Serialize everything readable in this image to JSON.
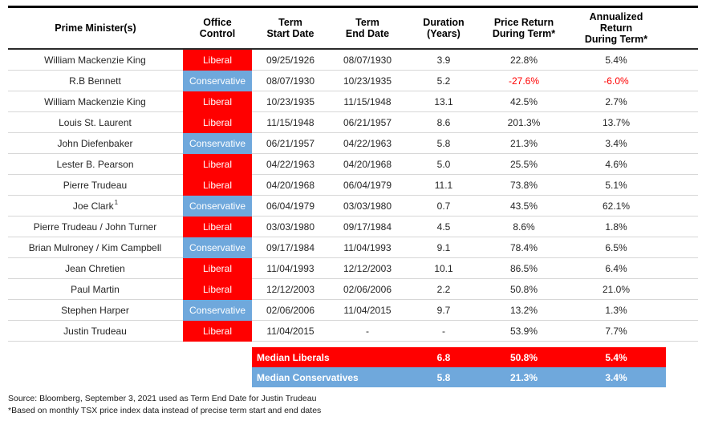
{
  "chart_data": {
    "type": "table",
    "columns": [
      "Prime Minister(s)",
      "Office\nControl",
      "Term\nStart Date",
      "Term\nEnd Date",
      "Duration\n(Years)",
      "Price Return\nDuring Term*",
      "Annualized\nReturn\nDuring Term*"
    ],
    "rows": [
      {
        "pm": "William Mackenzie King",
        "party": "Liberal",
        "start": "09/25/1926",
        "end": "08/07/1930",
        "duration": "3.9",
        "price_return": "22.8%",
        "annualized_return": "5.4%"
      },
      {
        "pm": "R.B Bennett",
        "party": "Conservative",
        "start": "08/07/1930",
        "end": "10/23/1935",
        "duration": "5.2",
        "price_return": "-27.6%",
        "annualized_return": "-6.0%"
      },
      {
        "pm": "William Mackenzie King",
        "party": "Liberal",
        "start": "10/23/1935",
        "end": "11/15/1948",
        "duration": "13.1",
        "price_return": "42.5%",
        "annualized_return": "2.7%"
      },
      {
        "pm": "Louis St. Laurent",
        "party": "Liberal",
        "start": "11/15/1948",
        "end": "06/21/1957",
        "duration": "8.6",
        "price_return": "201.3%",
        "annualized_return": "13.7%"
      },
      {
        "pm": "John Diefenbaker",
        "party": "Conservative",
        "start": "06/21/1957",
        "end": "04/22/1963",
        "duration": "5.8",
        "price_return": "21.3%",
        "annualized_return": "3.4%"
      },
      {
        "pm": "Lester B. Pearson",
        "party": "Liberal",
        "start": "04/22/1963",
        "end": "04/20/1968",
        "duration": "5.0",
        "price_return": "25.5%",
        "annualized_return": "4.6%"
      },
      {
        "pm": "Pierre Trudeau",
        "party": "Liberal",
        "start": "04/20/1968",
        "end": "06/04/1979",
        "duration": "11.1",
        "price_return": "73.8%",
        "annualized_return": "5.1%"
      },
      {
        "pm": "Joe Clark",
        "pm_superscript": "1",
        "party": "Conservative",
        "start": "06/04/1979",
        "end": "03/03/1980",
        "duration": "0.7",
        "price_return": "43.5%",
        "annualized_return": "62.1%"
      },
      {
        "pm": "Pierre Trudeau / John Turner",
        "party": "Liberal",
        "start": "03/03/1980",
        "end": "09/17/1984",
        "duration": "4.5",
        "price_return": "8.6%",
        "annualized_return": "1.8%"
      },
      {
        "pm": "Brian Mulroney / Kim Campbell",
        "party": "Conservative",
        "start": "09/17/1984",
        "end": "11/04/1993",
        "duration": "9.1",
        "price_return": "78.4%",
        "annualized_return": "6.5%"
      },
      {
        "pm": "Jean Chretien",
        "party": "Liberal",
        "start": "11/04/1993",
        "end": "12/12/2003",
        "duration": "10.1",
        "price_return": "86.5%",
        "annualized_return": "6.4%"
      },
      {
        "pm": "Paul Martin",
        "party": "Liberal",
        "start": "12/12/2003",
        "end": "02/06/2006",
        "duration": "2.2",
        "price_return": "50.8%",
        "annualized_return": "21.0%"
      },
      {
        "pm": "Stephen Harper",
        "party": "Conservative",
        "start": "02/06/2006",
        "end": "11/04/2015",
        "duration": "9.7",
        "price_return": "13.2%",
        "annualized_return": "1.3%"
      },
      {
        "pm": "Justin Trudeau",
        "party": "Liberal",
        "start": "11/04/2015",
        "end": "-",
        "duration": "-",
        "price_return": "53.9%",
        "annualized_return": "7.7%"
      }
    ],
    "summary_rows": [
      {
        "label": "Median Liberals",
        "duration": "6.8",
        "price_return": "50.8%",
        "annualized_return": "5.4%",
        "variant": "liberal"
      },
      {
        "label": "Median Conservatives",
        "duration": "5.8",
        "price_return": "21.3%",
        "annualized_return": "3.4%",
        "variant": "conservative"
      }
    ],
    "colors": {
      "liberal": "#FF0000",
      "conservative": "#6FA8DC",
      "negative_text": "#FF0000"
    },
    "footnotes": [
      "Source: Bloomberg, September 3, 2021 used as Term End Date for Justin Trudeau",
      "*Based on monthly TSX price index data instead of precise term start and end dates"
    ]
  }
}
